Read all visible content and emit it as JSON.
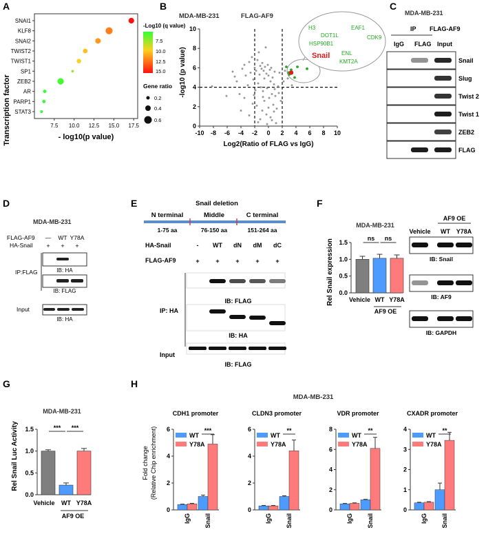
{
  "panel_letters": [
    "A",
    "B",
    "C",
    "D",
    "E",
    "F",
    "G",
    "H"
  ],
  "colors": {
    "gray_bar": "#7f7f7f",
    "wt": "#4e9bff",
    "y78a": "#ff7b7b",
    "sig_green": "#22aa22",
    "snail_red": "#e01b1b"
  },
  "chart_data": [
    {
      "id": "A",
      "type": "scatter",
      "ylabel": "Transcription factor",
      "xlabel": "- log10(p value)",
      "categories": [
        "SNAI1",
        "KLF8",
        "SNAI2",
        "TWIST2",
        "TWIST1",
        "SP1",
        "ZEB2",
        "AR",
        "PARP1",
        "STAT3"
      ],
      "x": [
        17.2,
        14.4,
        13.0,
        11.4,
        10.6,
        9.8,
        8.3,
        6.3,
        6.2,
        5.9
      ],
      "gene_ratio": [
        0.42,
        0.58,
        0.4,
        0.3,
        0.28,
        0.05,
        0.5,
        0.16,
        0.15,
        0.08
      ],
      "q_value": [
        15.5,
        12.2,
        11.4,
        10.2,
        9.6,
        7.2,
        5.5,
        5.2,
        5.1,
        5.0
      ],
      "xticks": [
        "7.5",
        "10.0",
        "12.5",
        "15.0",
        "17.5"
      ],
      "xtick_values": [
        7.5,
        10.0,
        12.5,
        15.0,
        17.5
      ],
      "xlim": [
        5,
        18
      ],
      "legend_q_title": "-Log10 (q value)",
      "legend_q_ticks": [
        "7.5",
        "10.0",
        "12.5",
        "15.0"
      ],
      "legend_size_title": "Gene ratio",
      "legend_size_ticks": [
        "0.2",
        "0.4",
        "0.6"
      ]
    },
    {
      "id": "B",
      "type": "scatter",
      "cell_line": "MDA-MB-231",
      "bait": "FLAG-AF9",
      "xlabel": "Log2(Ratio of FLAG vs IgG)",
      "ylabel": "-log10 (p value)",
      "xlim": [
        -10,
        10
      ],
      "ylim": [
        0,
        10
      ],
      "xticks": [
        "-10",
        "-8",
        "-6",
        "-4",
        "-2",
        "0",
        "2",
        "4",
        "6",
        "8",
        "10"
      ],
      "yticks": [
        "0",
        "2",
        "4",
        "6",
        "8",
        "10"
      ],
      "threshold_x": [
        -2,
        2
      ],
      "threshold_y": 4,
      "gray_points": [
        [
          -8.2,
          4.1
        ],
        [
          -6.1,
          3.1
        ],
        [
          -5.2,
          5.6
        ],
        [
          -4.9,
          5.1
        ],
        [
          -4.6,
          4.6
        ],
        [
          -4.2,
          3.3
        ],
        [
          -3.8,
          5.9
        ],
        [
          -3.5,
          6.3
        ],
        [
          -3.3,
          5.2
        ],
        [
          -3.0,
          4.2
        ],
        [
          -2.8,
          6.6
        ],
        [
          -2.6,
          5.5
        ],
        [
          -2.4,
          7.1
        ],
        [
          -2.2,
          4.8
        ],
        [
          -2.0,
          6.0
        ],
        [
          -1.9,
          3.7
        ],
        [
          -1.8,
          5.7
        ],
        [
          -1.6,
          6.8
        ],
        [
          -1.5,
          4.4
        ],
        [
          -1.4,
          7.6
        ],
        [
          -1.3,
          5.3
        ],
        [
          -1.2,
          6.2
        ],
        [
          -1.1,
          4.0
        ],
        [
          -1.0,
          5.9
        ],
        [
          -0.9,
          6.5
        ],
        [
          -0.8,
          3.6
        ],
        [
          -0.7,
          5.7
        ],
        [
          -0.6,
          4.9
        ],
        [
          -0.5,
          6.1
        ],
        [
          -0.4,
          8.1
        ],
        [
          -0.3,
          5.4
        ],
        [
          -0.2,
          3.9
        ],
        [
          -0.1,
          6.3
        ],
        [
          0.0,
          5.2
        ],
        [
          0.1,
          2.9
        ],
        [
          0.2,
          5.8
        ],
        [
          0.3,
          4.6
        ],
        [
          0.4,
          6.0
        ],
        [
          0.5,
          3.3
        ],
        [
          0.6,
          5.0
        ],
        [
          0.7,
          2.2
        ],
        [
          0.8,
          4.3
        ],
        [
          0.9,
          5.6
        ],
        [
          1.0,
          3.1
        ],
        [
          1.2,
          1.8
        ],
        [
          1.4,
          4.1
        ],
        [
          1.6,
          5.5
        ],
        [
          1.8,
          2.6
        ],
        [
          -1.7,
          2.1
        ],
        [
          -0.9,
          1.6
        ],
        [
          -0.3,
          1.2
        ],
        [
          0.3,
          0.9
        ],
        [
          0.8,
          1.5
        ],
        [
          -1.2,
          0.7
        ],
        [
          -0.6,
          2.6
        ],
        [
          0.0,
          1.9
        ],
        [
          -2.3,
          2.3
        ],
        [
          -2.8,
          1.1
        ],
        [
          -1.5,
          0.4
        ],
        [
          0.5,
          0.6
        ],
        [
          -3.5,
          2.9
        ],
        [
          1.1,
          0.3
        ],
        [
          2.4,
          5.7
        ],
        [
          2.8,
          4.9
        ],
        [
          3.4,
          4.2
        ],
        [
          2.2,
          4.6
        ],
        [
          -0.2,
          0.2
        ],
        [
          -4.0,
          1.6
        ],
        [
          -0.8,
          3.0
        ],
        [
          0.9,
          3.8
        ],
        [
          1.5,
          3.4
        ],
        [
          -2.1,
          3.2
        ]
      ],
      "green_points": [
        [
          2.6,
          6.1
        ],
        [
          3.0,
          5.3
        ],
        [
          3.3,
          5.8
        ],
        [
          4.2,
          6.1
        ],
        [
          5.6,
          5.9
        ],
        [
          3.8,
          5.0
        ],
        [
          2.9,
          5.5
        ]
      ],
      "snail_point": [
        3.3,
        5.5
      ],
      "callout_labels": [
        "H3",
        "EAF1",
        "DOT1L",
        "CDK9",
        "HSP90B1",
        "Snail",
        "ENL",
        "KMT2A"
      ]
    },
    {
      "id": "F",
      "type": "bar",
      "cell_line": "MDA-MB-231",
      "ylabel": "Rel Snail expression",
      "ylim": [
        0,
        1.5
      ],
      "yticks": [
        "0.0",
        "0.5",
        "1.0",
        "1.5"
      ],
      "categories": [
        "Vehicle",
        "WT",
        "Y78A"
      ],
      "values": [
        1.0,
        1.03,
        1.03
      ],
      "errors": [
        0.09,
        0.12,
        0.1
      ],
      "group_label": "AF9 OE",
      "sig": [
        "ns",
        "ns"
      ]
    },
    {
      "id": "G",
      "type": "bar",
      "cell_line": "MDA-MB-231",
      "ylabel": "Rel Snail Luc Activity",
      "ylim": [
        0,
        1.5
      ],
      "yticks": [
        "0.0",
        "0.5",
        "1.0",
        "1.5"
      ],
      "categories": [
        "Vehicle",
        "WT",
        "Y78A"
      ],
      "values": [
        1.0,
        0.22,
        1.0
      ],
      "errors": [
        0.03,
        0.05,
        0.06
      ],
      "group_label": "AF9 OE",
      "sig": [
        "***",
        "***"
      ]
    },
    {
      "id": "H",
      "type": "bar",
      "cell_line": "MDA-MB-231",
      "ylabel_line1": "Fold change",
      "ylabel_line2": "(Relative Chip enrichment)",
      "legend": [
        "WT",
        "Y78A"
      ],
      "categories": [
        "IgG",
        "Snail"
      ],
      "subplots": [
        {
          "title": "CDH1 promoter",
          "ylim": [
            0,
            6
          ],
          "yticks": [
            "0",
            "2",
            "4",
            "6"
          ],
          "wt": [
            0.4,
            1.0
          ],
          "wt_err": [
            0.03,
            0.1
          ],
          "y78a": [
            0.45,
            4.9
          ],
          "y78a_err": [
            0.04,
            0.7
          ],
          "sig": "***"
        },
        {
          "title": "CLDN3 promoter",
          "ylim": [
            0,
            6
          ],
          "yticks": [
            "0",
            "2",
            "4",
            "6"
          ],
          "wt": [
            0.3,
            1.0
          ],
          "wt_err": [
            0.03,
            0.05
          ],
          "y78a": [
            0.3,
            4.4
          ],
          "y78a_err": [
            0.03,
            0.8
          ],
          "sig": "**"
        },
        {
          "title": "VDR promoter",
          "ylim": [
            0,
            8
          ],
          "yticks": [
            "0",
            "2",
            "4",
            "6",
            "8"
          ],
          "wt": [
            0.6,
            1.0
          ],
          "wt_err": [
            0.04,
            0.05
          ],
          "y78a": [
            0.65,
            6.1
          ],
          "y78a_err": [
            0.05,
            1.1
          ],
          "sig": "**"
        },
        {
          "title": "CXADR promoter",
          "ylim": [
            0,
            4
          ],
          "yticks": [
            "0",
            "1",
            "2",
            "3",
            "4"
          ],
          "wt": [
            0.35,
            1.0
          ],
          "wt_err": [
            0.03,
            0.33
          ],
          "y78a": [
            0.38,
            3.45
          ],
          "y78a_err": [
            0.03,
            0.4
          ],
          "sig": "**"
        }
      ]
    }
  ],
  "blot_C": {
    "cell_line": "MDA-MB-231",
    "ip_label": "IP",
    "bait": "FLAG-AF9",
    "lanes": [
      "IgG",
      "FLAG",
      "Input"
    ],
    "rows": [
      "Snail",
      "Slug",
      "Twist 2",
      "Twist 1",
      "ZEB2",
      "FLAG"
    ],
    "intensity": [
      [
        0,
        0.45,
        0.9
      ],
      [
        0,
        0,
        0.85
      ],
      [
        0,
        0,
        0.85
      ],
      [
        0,
        0,
        0.95
      ],
      [
        0,
        0,
        0.8
      ],
      [
        0,
        0.95,
        0.95
      ]
    ]
  },
  "blot_D": {
    "cell_line": "MDA-MB-231",
    "row_flag": "FLAG-AF9",
    "row_ha": "HA-Snail",
    "flag_marks": [
      "—",
      "WT",
      "Y78A"
    ],
    "ha_marks": [
      "+",
      "+",
      "+"
    ],
    "ip_label": "IP:FLAG",
    "ib_ha": "IB: HA",
    "ib_flag": "IB: FLAG",
    "input_label": "Input",
    "input_ib": "IB: HA"
  },
  "blot_E": {
    "title": "Snail deletion",
    "domains": [
      "N terminal",
      "Middle",
      "C terminal"
    ],
    "ranges": [
      "1-75 aa",
      "76-150 aa",
      "151-264 aa"
    ],
    "ha_label": "HA-Snail",
    "ha_marks": [
      "-",
      "WT",
      "dN",
      "dM",
      "dC"
    ],
    "flag_label": "FLAG-AF9",
    "flag_marks": [
      "+",
      "+",
      "+",
      "+",
      "+"
    ],
    "ip_label": "IP: HA",
    "ib_flag": "IB: FLAG",
    "ib_ha": "IB: HA",
    "input_label": "Input",
    "input_ib": "IB: FLAG"
  },
  "blot_F": {
    "group": "AF9 OE",
    "lanes": [
      "Vehicle",
      "WT",
      "Y78A"
    ],
    "ib": [
      "IB: Snail",
      "IB: AF9",
      "IB: GAPDH"
    ]
  }
}
